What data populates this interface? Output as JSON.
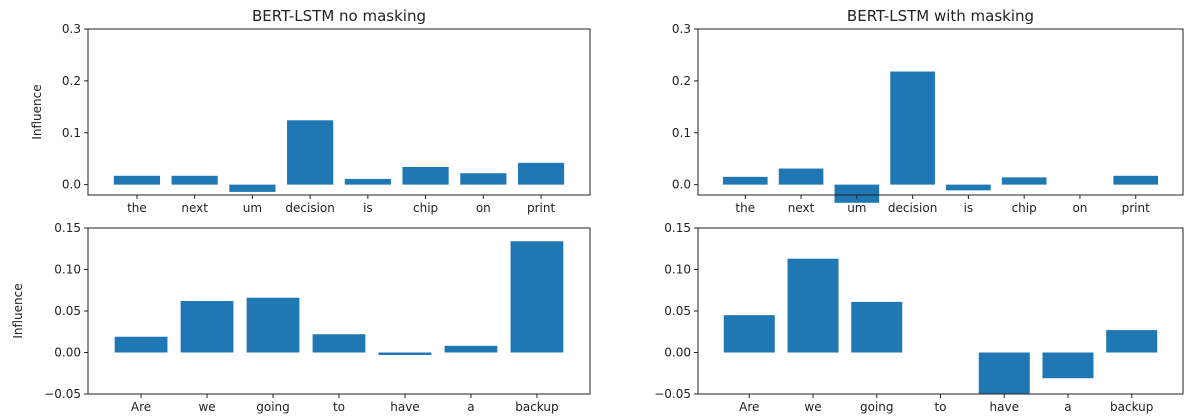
{
  "chart_data": [
    {
      "type": "bar",
      "title": "BERT-LSTM no masking",
      "ylabel": "Influence",
      "xlabel": "",
      "categories": [
        "the",
        "next",
        "um",
        "decision",
        "is",
        "chip",
        "on",
        "print"
      ],
      "values": [
        0.017,
        0.017,
        -0.014,
        0.124,
        0.011,
        0.034,
        0.022,
        0.042
      ],
      "ylim": [
        -0.02,
        0.3
      ],
      "yticks": [
        0.0,
        0.1,
        0.2,
        0.3
      ],
      "ytick_labels": [
        "0.0",
        "0.1",
        "0.2",
        "0.3"
      ],
      "color": "#1f77b4",
      "grid": false
    },
    {
      "type": "bar",
      "title": "BERT-LSTM with masking",
      "ylabel": "",
      "xlabel": "",
      "categories": [
        "the",
        "next",
        "um",
        "decision",
        "is",
        "chip",
        "on",
        "print"
      ],
      "values": [
        0.015,
        0.031,
        -0.035,
        0.218,
        -0.011,
        0.014,
        0.0,
        0.017
      ],
      "ylim": [
        -0.02,
        0.3
      ],
      "yticks": [
        0.0,
        0.1,
        0.2,
        0.3
      ],
      "ytick_labels": [
        "0.0",
        "0.1",
        "0.2",
        "0.3"
      ],
      "color": "#1f77b4",
      "grid": false
    },
    {
      "type": "bar",
      "title": "",
      "ylabel": "Influence",
      "xlabel": "",
      "categories": [
        "Are",
        "we",
        "going",
        "to",
        "have",
        "a",
        "backup"
      ],
      "values": [
        0.019,
        0.062,
        0.066,
        0.022,
        -0.003,
        0.008,
        0.134
      ],
      "ylim": [
        -0.05,
        0.15
      ],
      "yticks": [
        -0.05,
        0.0,
        0.05,
        0.1,
        0.15
      ],
      "ytick_labels": [
        "−0.05",
        "0.00",
        "0.05",
        "0.10",
        "0.15"
      ],
      "color": "#1f77b4",
      "grid": false
    },
    {
      "type": "bar",
      "title": "",
      "ylabel": "",
      "xlabel": "",
      "categories": [
        "Are",
        "we",
        "going",
        "to",
        "have",
        "a",
        "backup"
      ],
      "values": [
        0.045,
        0.113,
        0.061,
        0.0,
        -0.05,
        -0.031,
        0.027
      ],
      "ylim": [
        -0.05,
        0.15
      ],
      "yticks": [
        -0.05,
        0.0,
        0.05,
        0.1,
        0.15
      ],
      "ytick_labels": [
        "−0.05",
        "0.00",
        "0.05",
        "0.10",
        "0.15"
      ],
      "color": "#1f77b4",
      "grid": false
    }
  ]
}
